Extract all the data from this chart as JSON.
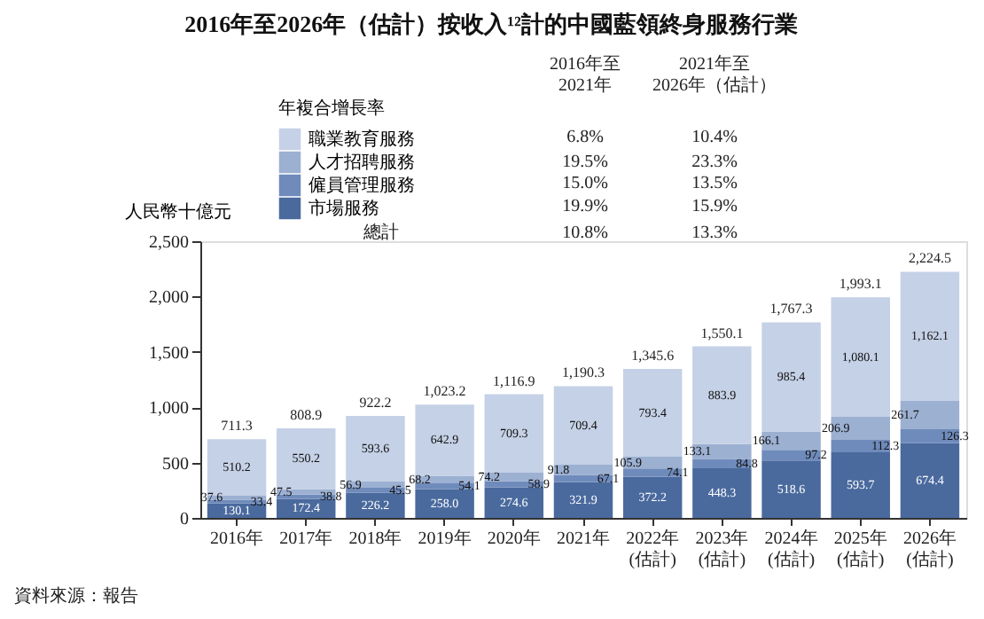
{
  "chart_data": {
    "type": "bar",
    "stacked": true,
    "title": "2016年至2026年（估計）按收入¹²計的中國藍領終身服務行業",
    "ylabel": "人民幣十億元",
    "legend_title": "年複合增長率",
    "categories": [
      "2016年",
      "2017年",
      "2018年",
      "2019年",
      "2020年",
      "2021年",
      "2022年\n(估計)",
      "2023年\n(估計)",
      "2024年\n(估計)",
      "2025年\n(估計)",
      "2026年\n(估計)"
    ],
    "series": [
      {
        "name": "市場服務",
        "color": "#4a6a9e",
        "values": [
          130.1,
          172.4,
          226.2,
          258.0,
          274.6,
          321.9,
          372.2,
          448.3,
          518.6,
          593.7,
          674.4
        ],
        "value_labels": [
          "130.1",
          "172.4",
          "226.2",
          "258.0",
          "274.6",
          "321.9",
          "372.2",
          "448.3",
          "518.6",
          "593.7",
          "674.4"
        ]
      },
      {
        "name": "僱員管理服務",
        "color": "#6f8bbb",
        "values": [
          33.4,
          38.8,
          45.5,
          54.1,
          58.9,
          67.1,
          74.1,
          84.8,
          97.2,
          112.3,
          126.3
        ],
        "value_labels": [
          "33.4",
          "38.8",
          "45.5",
          "54.1",
          "58.9",
          "67.1",
          "74.1",
          "84.8",
          "97.2",
          "112.3",
          "126.3"
        ]
      },
      {
        "name": "人才招聘服務",
        "color": "#9cb0d2",
        "values": [
          37.6,
          47.5,
          56.9,
          68.2,
          74.2,
          91.8,
          105.9,
          133.1,
          166.1,
          206.9,
          261.7
        ],
        "value_labels": [
          "37.6",
          "47.5",
          "56.9",
          "68.2",
          "74.2",
          "91.8",
          "105.9",
          "133.1",
          "166.1",
          "206.9",
          "261.7"
        ]
      },
      {
        "name": "職業教育服務",
        "color": "#c5d1e6",
        "values": [
          510.2,
          550.2,
          593.6,
          642.9,
          709.3,
          709.4,
          793.4,
          883.9,
          985.4,
          1080.1,
          1162.1
        ],
        "value_labels": [
          "510.2",
          "550.2",
          "593.6",
          "642.9",
          "709.3",
          "709.4",
          "793.4",
          "883.9",
          "985.4",
          "1,080.1",
          "1,162.1"
        ]
      }
    ],
    "totals": [
      "711.3",
      "808.9",
      "922.2",
      "1,023.2",
      "1,116.9",
      "1,190.3",
      "1,345.6",
      "1,550.1",
      "1,767.3",
      "1,993.1",
      "2,224.5"
    ],
    "ylim": [
      0,
      2500
    ],
    "yticks": [
      0,
      500,
      {
        "value": 1000,
        "label": "1,000"
      },
      {
        "value": 1500,
        "label": "1,500"
      },
      {
        "value": 2000,
        "label": "2,000"
      },
      {
        "value": 2500,
        "label": "2,500"
      }
    ],
    "grid": false,
    "legend": "top left",
    "data_labels": true,
    "annotations": [
      "2016年至\n2021年",
      "2021年至\n2026年（估計）",
      "10.4%",
      "6.8%",
      "23.3%",
      "19.5%",
      "13.5%",
      "15.0%",
      "15.9%",
      "19.9%",
      "總計",
      "10.8%",
      "13.3%",
      "資料來源：報告"
    ]
  }
}
